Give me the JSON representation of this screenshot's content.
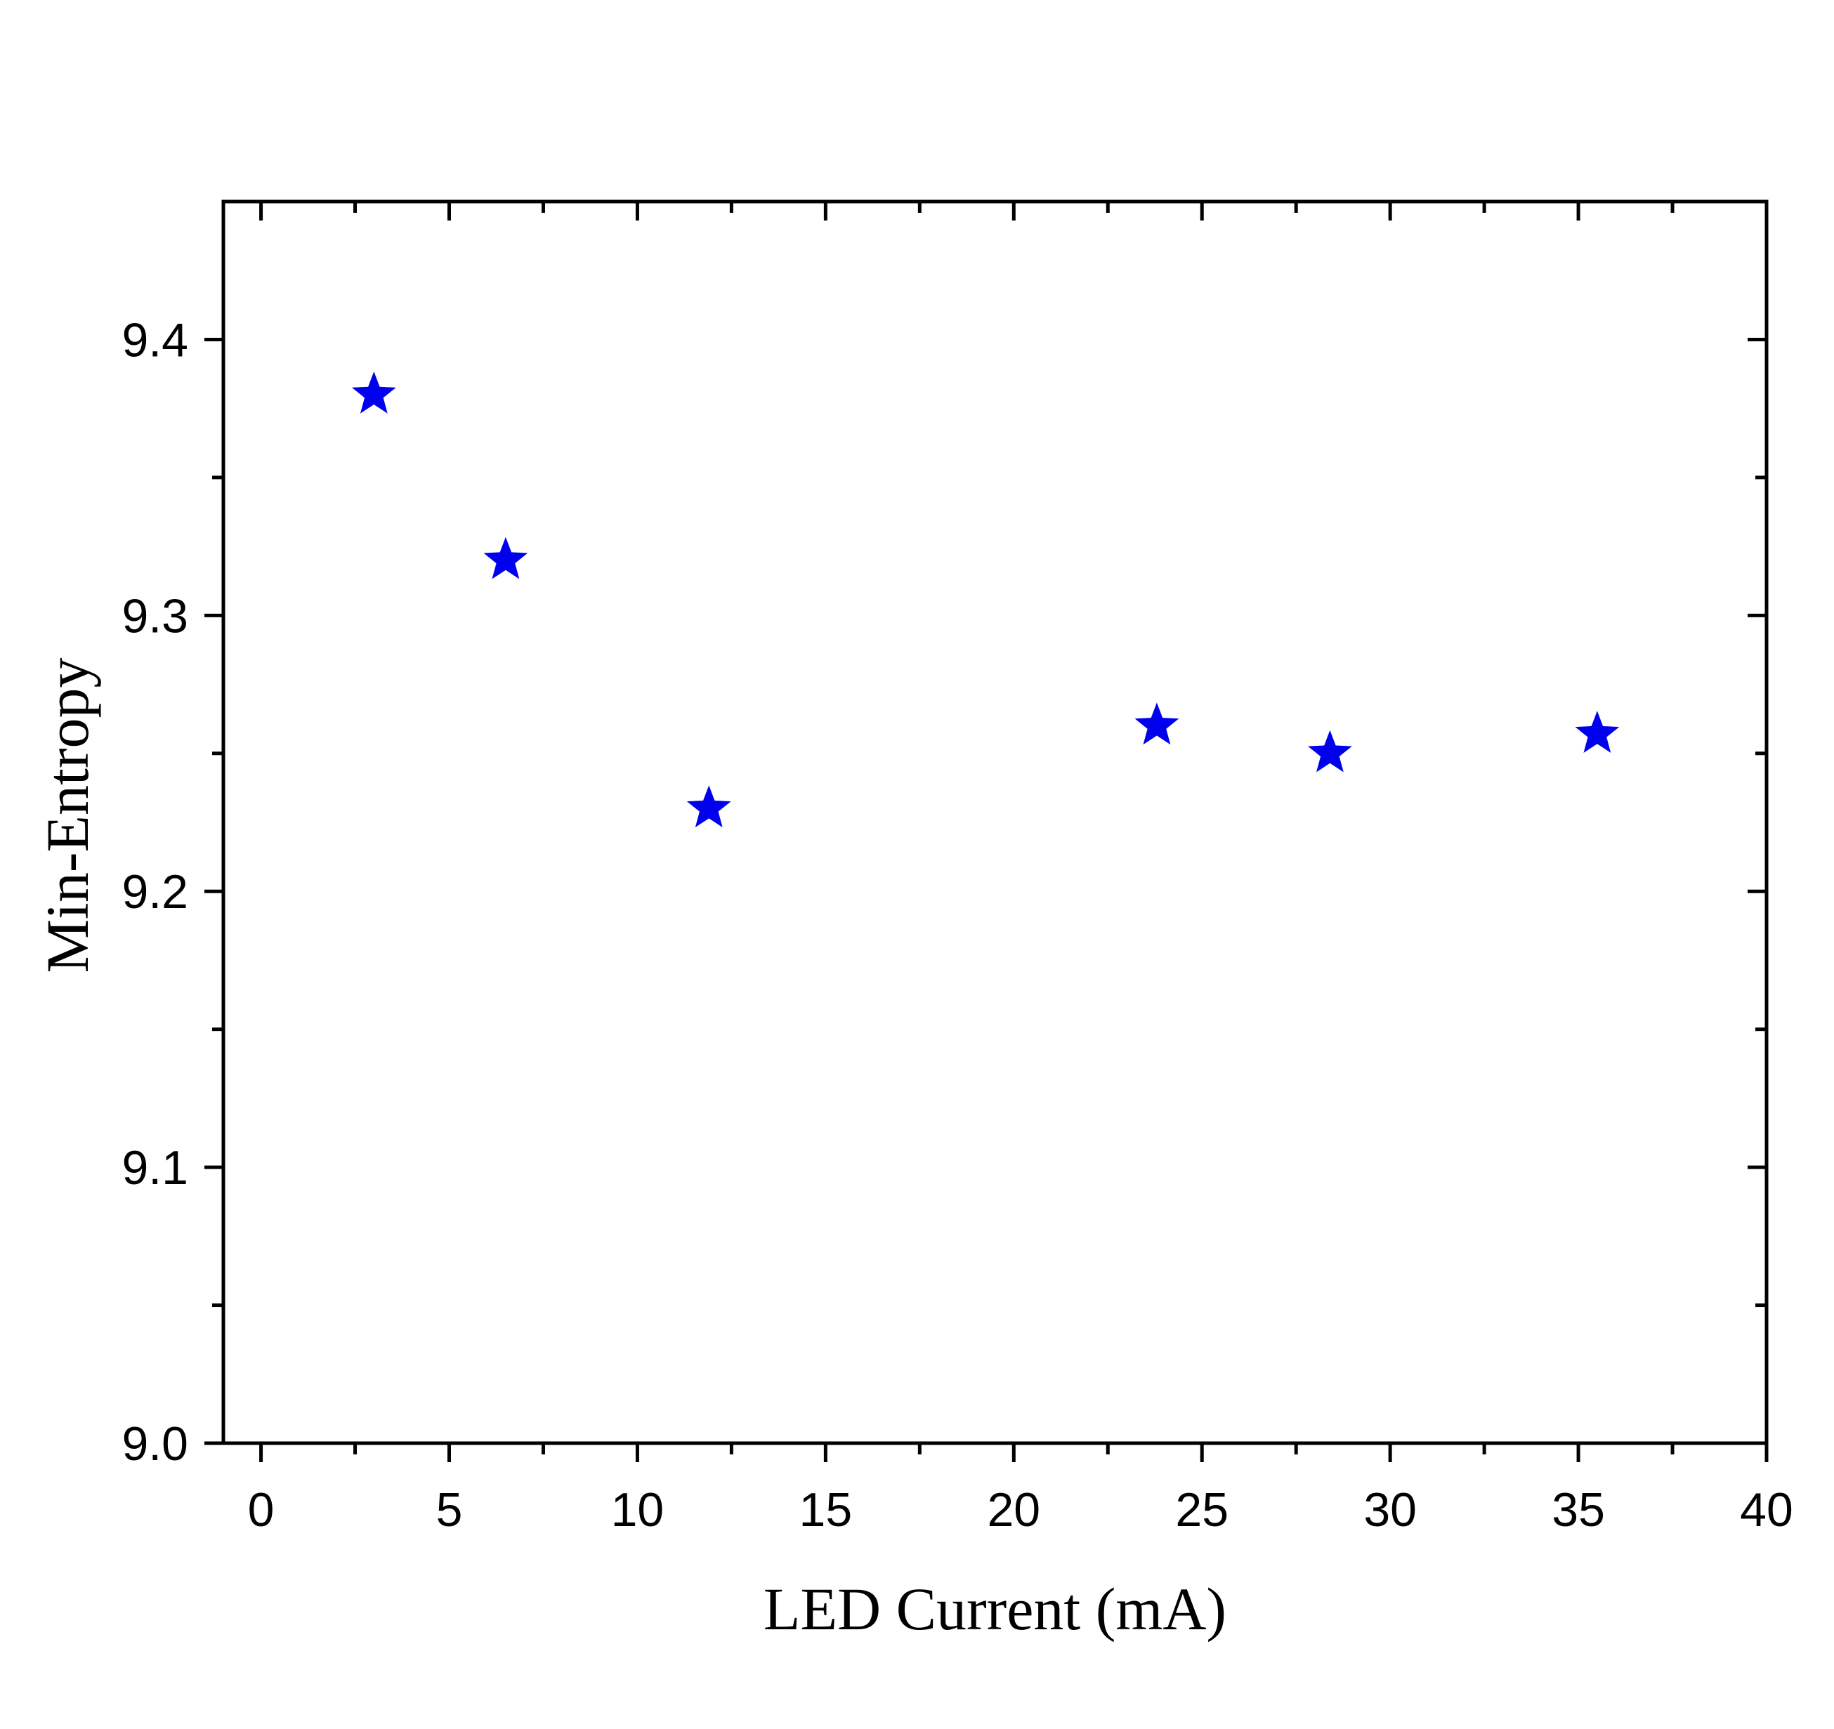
{
  "chart_data": {
    "type": "scatter",
    "title": "",
    "xlabel": "LED Current (mA)",
    "ylabel": "Min-Entropy",
    "xlim": [
      -1,
      40
    ],
    "ylim": [
      9.0,
      9.45
    ],
    "xticks": [
      0,
      5,
      10,
      15,
      20,
      25,
      30,
      35,
      40
    ],
    "xtick_labels": [
      "0",
      "5",
      "10",
      "15",
      "20",
      "25",
      "30",
      "35",
      "40"
    ],
    "yticks": [
      9.0,
      9.1,
      9.2,
      9.3,
      9.4
    ],
    "ytick_labels": [
      "9.0",
      "9.1",
      "9.2",
      "9.3",
      "9.4"
    ],
    "grid": false,
    "legend": "none",
    "series": [
      {
        "marker": "star",
        "color": "#0000ee",
        "points": [
          {
            "x": 3.0,
            "y": 9.38
          },
          {
            "x": 6.5,
            "y": 9.32
          },
          {
            "x": 11.9,
            "y": 9.23
          },
          {
            "x": 23.8,
            "y": 9.26
          },
          {
            "x": 28.4,
            "y": 9.25
          },
          {
            "x": 35.5,
            "y": 9.257
          }
        ]
      }
    ]
  }
}
